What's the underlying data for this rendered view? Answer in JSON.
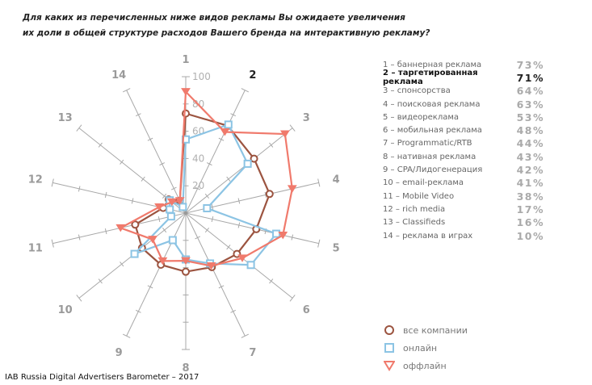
{
  "title_lines": [
    "Для каких из перечисленных ниже видов рекламы Вы ожидаете увеличения",
    "их доли в общей структуре расходов Вашего бренда на  интерактивную рекламу?"
  ],
  "legend_items": [
    {
      "label": "1 – баннерная реклама",
      "pct": "73%"
    },
    {
      "label": "2 – таргетированная реклама",
      "pct": "71%",
      "highlight": true
    },
    {
      "label": "3 – спонсорства",
      "pct": "64%"
    },
    {
      "label": "4 – поисковая реклама",
      "pct": "63%"
    },
    {
      "label": "5 – видеореклама",
      "pct": "53%"
    },
    {
      "label": "6 – мобильная реклама",
      "pct": "48%"
    },
    {
      "label": "7 – Programmatic/RTB",
      "pct": "44%"
    },
    {
      "label": "8 – нативная реклама",
      "pct": "43%"
    },
    {
      "label": "9 – CPA/Лидогенерация",
      "pct": "42%"
    },
    {
      "label": "10 –  email-реклама",
      "pct": "41%"
    },
    {
      "label": "11 –  Mobile Video",
      "pct": "38%"
    },
    {
      "label": "12 –  rich media",
      "pct": "17%"
    },
    {
      "label": "13 –  Classifieds",
      "pct": "16%"
    },
    {
      "label": "14 –  реклама в играх",
      "pct": "10%"
    }
  ],
  "footer": "IAB Russia Digital Advertisers Barometer – 2017",
  "chart_data": {
    "type": "radar",
    "axes": [
      "1",
      "2",
      "3",
      "4",
      "5",
      "6",
      "7",
      "8",
      "9",
      "10",
      "11",
      "12",
      "13",
      "14"
    ],
    "highlight_axis": "2",
    "rlim": [
      0,
      100
    ],
    "rticks": [
      20,
      40,
      60,
      80,
      100
    ],
    "series": [
      {
        "name": "все компании",
        "marker": "circle",
        "color": "#9c5440",
        "values": [
          73,
          71,
          64,
          63,
          53,
          48,
          44,
          43,
          42,
          41,
          38,
          17,
          16,
          10
        ]
      },
      {
        "name": "онлайн",
        "marker": "square",
        "color": "#8cc4e4",
        "values": [
          54,
          72,
          58,
          16,
          68,
          61,
          41,
          34,
          22,
          48,
          11,
          12,
          15,
          5
        ]
      },
      {
        "name": "оффлайн",
        "marker": "triangle",
        "color": "#f07a6c",
        "values": [
          89,
          66,
          93,
          80,
          73,
          53,
          43,
          35,
          39,
          31,
          49,
          20,
          13,
          10
        ]
      }
    ]
  }
}
